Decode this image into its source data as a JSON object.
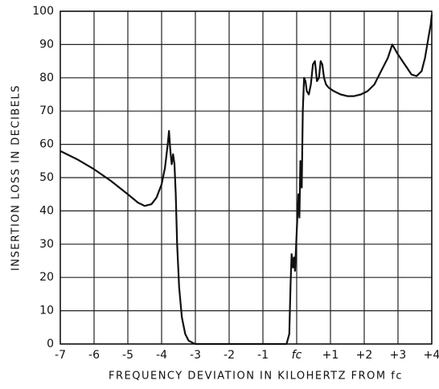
{
  "chart_data": {
    "type": "line",
    "xlabel": "FREQUENCY DEVIATION IN KILOHERTZ FROM fc",
    "ylabel": "INSERTION LOSS IN DECIBELS",
    "x": [
      -7,
      -6.5,
      -6,
      -5.5,
      -5,
      -4.7,
      -4.5,
      -4.3,
      -4.15,
      -4,
      -3.9,
      -3.82,
      -3.78,
      -3.74,
      -3.7,
      -3.66,
      -3.62,
      -3.58,
      -3.54,
      -3.48,
      -3.4,
      -3.3,
      -3.2,
      -3.05,
      -3,
      -2,
      -1,
      -0.3,
      -0.22,
      -0.18,
      -0.15,
      -0.11,
      -0.08,
      -0.05,
      0.05,
      0.08,
      0.11,
      0.15,
      0.18,
      0.22,
      0.26,
      0.3,
      0.36,
      0.42,
      0.48,
      0.54,
      0.6,
      0.66,
      0.71,
      0.76,
      0.81,
      0.87,
      0.95,
      1.1,
      1.3,
      1.5,
      1.7,
      1.9,
      2.1,
      2.3,
      2.5,
      2.7,
      2.83,
      3,
      3.2,
      3.4,
      3.55,
      3.7,
      3.8,
      3.9,
      3.97,
      4
    ],
    "values": [
      58,
      55.5,
      52.5,
      49,
      45,
      42.5,
      41.5,
      42,
      44,
      48,
      53,
      60,
      64,
      58,
      54,
      57,
      54,
      45,
      30,
      17,
      8,
      3,
      1,
      0.2,
      0,
      0,
      0,
      0,
      3,
      18,
      27,
      23,
      26,
      22,
      45,
      38,
      55,
      47,
      70,
      80,
      79,
      76,
      75,
      78,
      84,
      85,
      79,
      80,
      85,
      84,
      80,
      78,
      77,
      76,
      75,
      74.5,
      74.5,
      75,
      76,
      78,
      82,
      86,
      90,
      87,
      84,
      81,
      80.5,
      82,
      86,
      92,
      96,
      99
    ],
    "color": "#111111",
    "xlim": [
      -7,
      4
    ],
    "ylim": [
      0,
      100
    ],
    "xticks": [
      -7,
      -6,
      -5,
      -4,
      -3,
      -2,
      -1,
      {
        "value": 0,
        "label": "fc"
      },
      {
        "value": 1,
        "label": "+1"
      },
      {
        "value": 2,
        "label": "+2"
      },
      {
        "value": 3,
        "label": "+3"
      },
      {
        "value": 4,
        "label": "+4"
      }
    ],
    "yticks": [
      0,
      10,
      20,
      30,
      40,
      50,
      60,
      70,
      80,
      90,
      100
    ],
    "grid": true
  }
}
